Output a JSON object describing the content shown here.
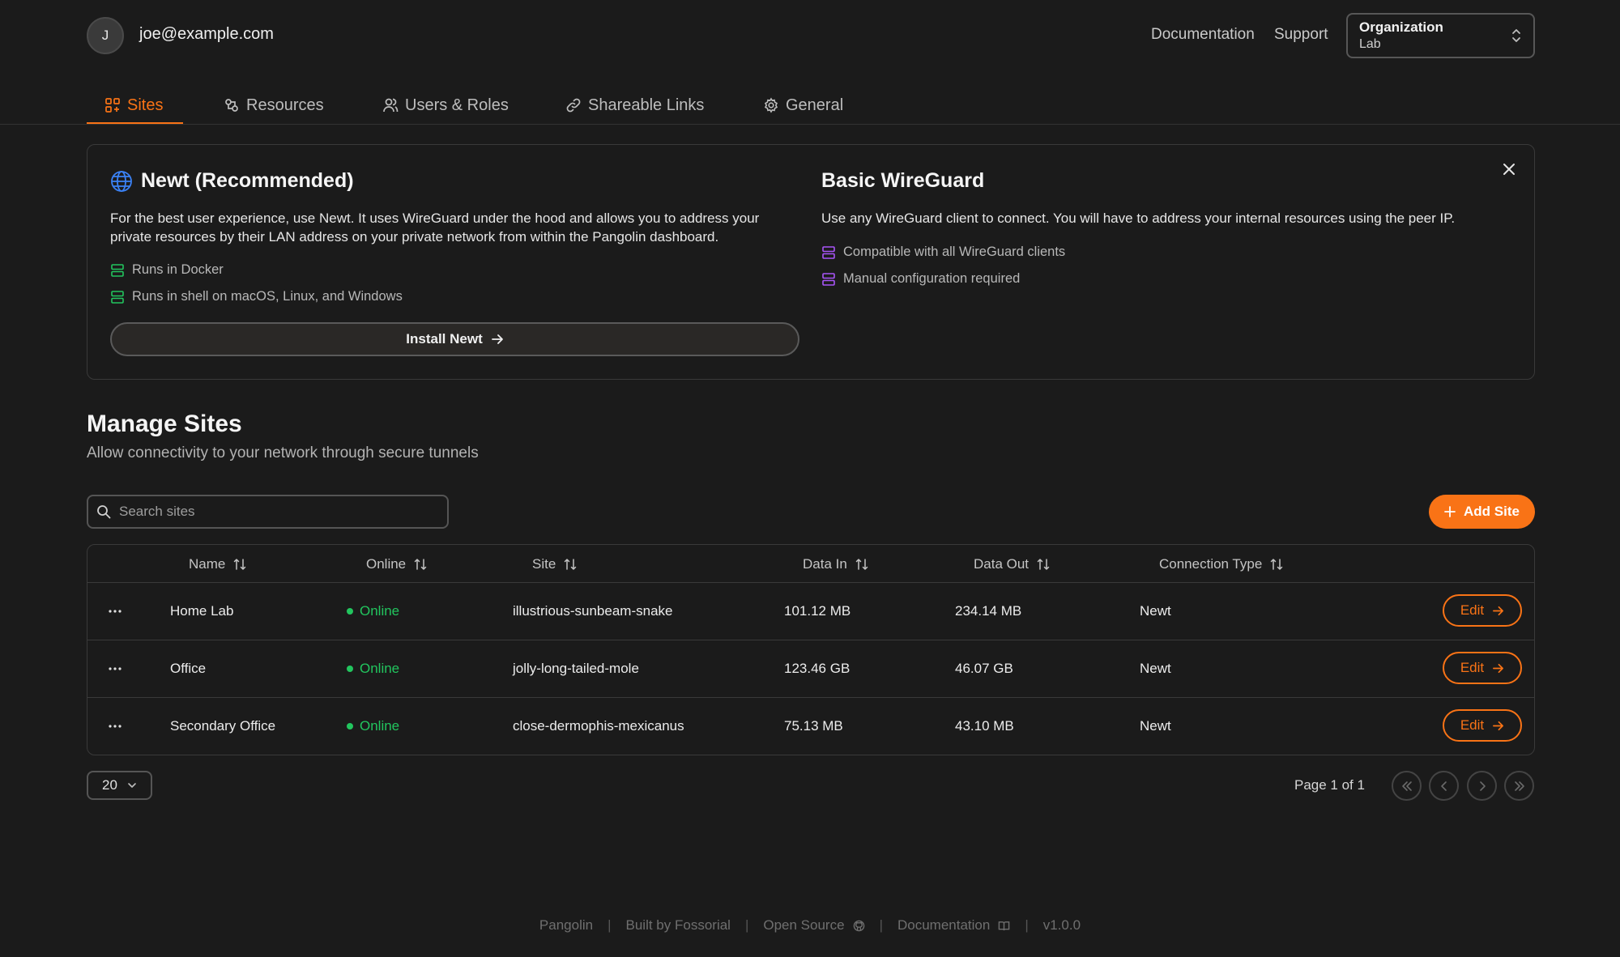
{
  "header": {
    "avatar_initial": "J",
    "user_email": "joe@example.com",
    "links": {
      "documentation": "Documentation",
      "support": "Support"
    },
    "org_selector": {
      "label": "Organization",
      "value": "Lab"
    }
  },
  "tabs": [
    {
      "label": "Sites",
      "icon": "sites-icon",
      "active": true
    },
    {
      "label": "Resources",
      "icon": "resources-icon",
      "active": false
    },
    {
      "label": "Users & Roles",
      "icon": "users-icon",
      "active": false
    },
    {
      "label": "Shareable Links",
      "icon": "link-icon",
      "active": false
    },
    {
      "label": "General",
      "icon": "gear-icon",
      "active": false
    }
  ],
  "info_card": {
    "newt": {
      "title": "Newt (Recommended)",
      "description": "For the best user experience, use Newt. It uses WireGuard under the hood and allows you to address your private resources by their LAN address on your private network from within the Pangolin dashboard.",
      "features": [
        "Runs in Docker",
        "Runs in shell on macOS, Linux, and Windows"
      ],
      "button": "Install Newt"
    },
    "wireguard": {
      "title": "Basic WireGuard",
      "description": "Use any WireGuard client to connect. You will have to address your internal resources using the peer IP.",
      "features": [
        "Compatible with all WireGuard clients",
        "Manual configuration required"
      ]
    }
  },
  "manage": {
    "title": "Manage Sites",
    "subtitle": "Allow connectivity to your network through secure tunnels",
    "search_placeholder": "Search sites",
    "add_button": "Add Site"
  },
  "table": {
    "columns": [
      "Name",
      "Online",
      "Site",
      "Data In",
      "Data Out",
      "Connection Type"
    ],
    "rows": [
      {
        "name": "Home Lab",
        "online": "Online",
        "site": "illustrious-sunbeam-snake",
        "data_in": "101.12 MB",
        "data_out": "234.14 MB",
        "type": "Newt",
        "edit": "Edit"
      },
      {
        "name": "Office",
        "online": "Online",
        "site": "jolly-long-tailed-mole",
        "data_in": "123.46 GB",
        "data_out": "46.07 GB",
        "type": "Newt",
        "edit": "Edit"
      },
      {
        "name": "Secondary Office",
        "online": "Online",
        "site": "close-dermophis-mexicanus",
        "data_in": "75.13 MB",
        "data_out": "43.10 MB",
        "type": "Newt",
        "edit": "Edit"
      }
    ]
  },
  "pagination": {
    "page_size": "20",
    "page_info": "Page 1 of 1"
  },
  "footer": {
    "items": [
      "Pangolin",
      "Built by Fossorial",
      "Open Source",
      "Documentation",
      "v1.0.0"
    ]
  },
  "colors": {
    "accent": "#f97316",
    "online": "#22c55e",
    "background": "#1b1b1b",
    "newt_feature_icon": "#22c55e",
    "wireguard_feature_icon": "#a855f7",
    "globe_icon": "#3b82f6"
  }
}
